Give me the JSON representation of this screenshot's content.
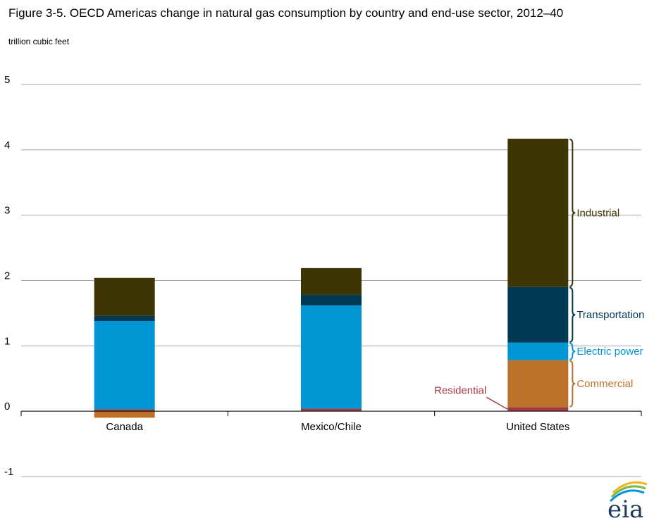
{
  "chart_data": {
    "type": "bar",
    "stacked": true,
    "title": "Figure 3-5. OECD Americas change in natural gas consumption by country and end-use sector, 2012–40",
    "ylabel": "trillion cubic feet",
    "xlabel": "",
    "ylim": [
      -1,
      5
    ],
    "yticks": [
      5,
      4,
      3,
      2,
      1,
      0,
      -1
    ],
    "grid": true,
    "categories": [
      "Canada",
      "Mexico/Chile",
      "United States"
    ],
    "series": [
      {
        "name": "Residential",
        "color": "#a63a45",
        "values": [
          0.03,
          0.04,
          0.06
        ]
      },
      {
        "name": "Commercial",
        "color": "#bd722c",
        "values": [
          -0.1,
          0.0,
          0.72
        ]
      },
      {
        "name": "Electric power",
        "color": "#0096d6",
        "values": [
          1.35,
          1.58,
          0.27
        ]
      },
      {
        "name": "Transportation",
        "color": "#003953",
        "values": [
          0.08,
          0.16,
          0.85
        ]
      },
      {
        "name": "Industrial",
        "color": "#3e3504",
        "values": [
          0.58,
          0.41,
          2.27
        ]
      }
    ],
    "annotations": [
      {
        "label": "Industrial",
        "color": "#3e3504"
      },
      {
        "label": "Transportation",
        "color": "#003953"
      },
      {
        "label": "Commercial",
        "color": "#bd722c"
      },
      {
        "label": "Electric power",
        "color": "#0096d6"
      },
      {
        "label": "Residential",
        "color": "#a63a45"
      }
    ]
  },
  "logo": {
    "text": "eia"
  }
}
